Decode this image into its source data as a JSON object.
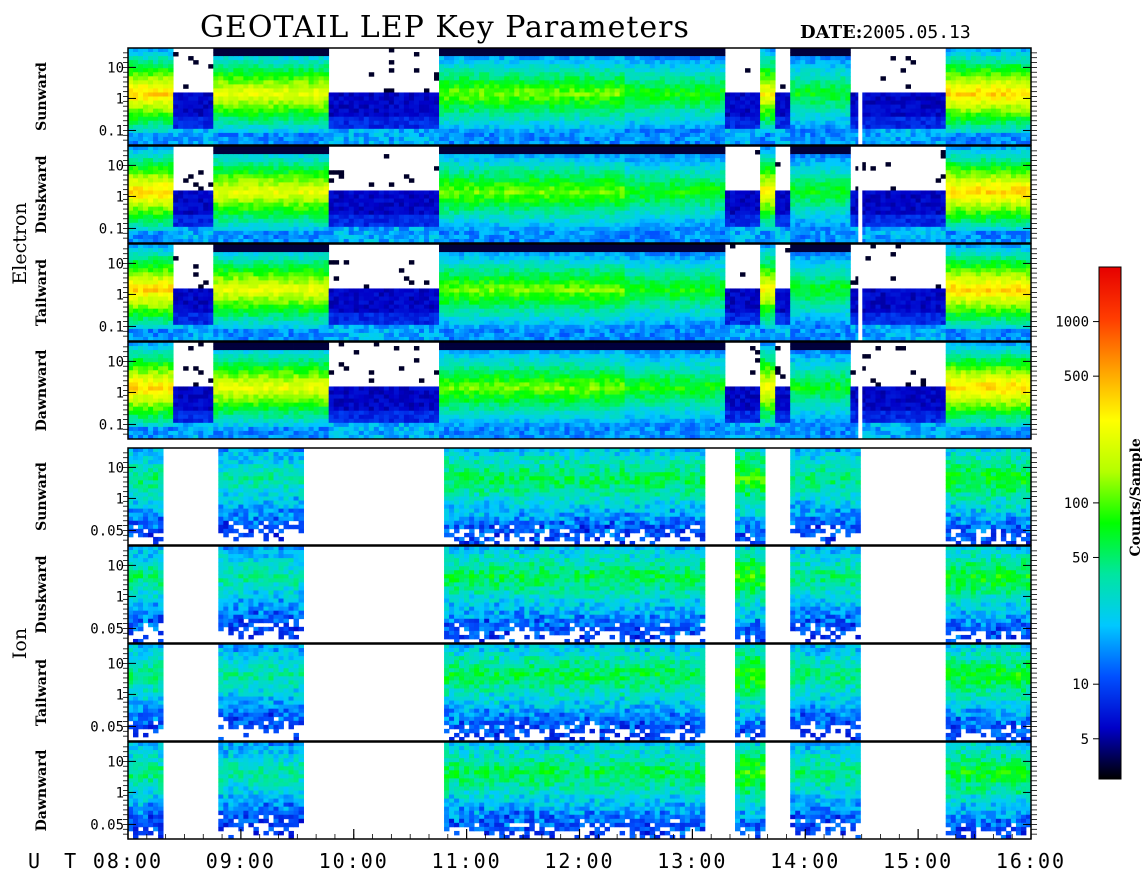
{
  "header": {
    "title": "GEOTAIL LEP Key Parameters",
    "date_label": "DATE:",
    "date_value": "2005.05.13"
  },
  "chart_data": {
    "type": "heatmap",
    "title": "GEOTAIL LEP Key Parameters",
    "date": "2005.05.13",
    "x_axis": {
      "label": "U T",
      "range": [
        "08:00",
        "16:00"
      ],
      "ticks": [
        "08:00",
        "09:00",
        "10:00",
        "11:00",
        "12:00",
        "13:00",
        "14:00",
        "15:00",
        "16:00"
      ]
    },
    "groups": [
      {
        "name": "Electron",
        "panels": [
          {
            "name": "Sunward",
            "y_scale": "log",
            "y_ticks": [
              "10",
              "1",
              "0.1"
            ]
          },
          {
            "name": "Duskward",
            "y_scale": "log",
            "y_ticks": [
              "10",
              "1",
              "0.1"
            ]
          },
          {
            "name": "Tailward",
            "y_scale": "log",
            "y_ticks": [
              "10",
              "1",
              "0.1"
            ]
          },
          {
            "name": "Dawnward",
            "y_scale": "log",
            "y_ticks": [
              "10",
              "1",
              "0.1"
            ]
          }
        ]
      },
      {
        "name": "Ion",
        "panels": [
          {
            "name": "Sunward",
            "y_scale": "log",
            "y_ticks": [
              "10",
              "1",
              "0.05"
            ]
          },
          {
            "name": "Duskward",
            "y_scale": "log",
            "y_ticks": [
              "10",
              "1",
              "0.05"
            ]
          },
          {
            "name": "Tailward",
            "y_scale": "log",
            "y_ticks": [
              "10",
              "1",
              "0.05"
            ]
          },
          {
            "name": "Dawnward",
            "y_scale": "log",
            "y_ticks": [
              "10",
              "1",
              "0.05"
            ]
          }
        ]
      }
    ],
    "colorbar": {
      "label": "Counts/Sample",
      "scale": "log",
      "range": [
        3,
        2000
      ],
      "ticks": [
        "1000",
        "500",
        "100",
        "50",
        "10",
        "5"
      ],
      "colors": [
        "#000000",
        "#0000c8",
        "#0050ff",
        "#00c8ff",
        "#00e6a0",
        "#00ff00",
        "#b4ff00",
        "#ffff00",
        "#ffa000",
        "#ff3c00",
        "#e60000"
      ]
    },
    "electron_activity_hours": [
      [
        8.0,
        8.38,
        0.95
      ],
      [
        8.38,
        8.75,
        0.3
      ],
      [
        8.75,
        9.8,
        0.85
      ],
      [
        9.8,
        10.75,
        0.3
      ],
      [
        10.75,
        12.4,
        0.7
      ],
      [
        12.4,
        13.3,
        0.62
      ],
      [
        13.3,
        13.6,
        0.3
      ],
      [
        13.6,
        13.75,
        0.9
      ],
      [
        13.75,
        13.85,
        0.3
      ],
      [
        13.85,
        14.4,
        0.6
      ],
      [
        14.4,
        14.55,
        0.3
      ],
      [
        14.55,
        15.25,
        0.3
      ],
      [
        15.25,
        16.0,
        0.95
      ]
    ],
    "ion_activity_hours": [
      [
        8.0,
        8.3,
        0.45
      ],
      [
        8.8,
        9.55,
        0.4
      ],
      [
        10.8,
        13.1,
        0.5
      ],
      [
        13.4,
        13.65,
        0.6
      ],
      [
        13.85,
        14.5,
        0.45
      ],
      [
        15.25,
        16.0,
        0.55
      ]
    ]
  }
}
